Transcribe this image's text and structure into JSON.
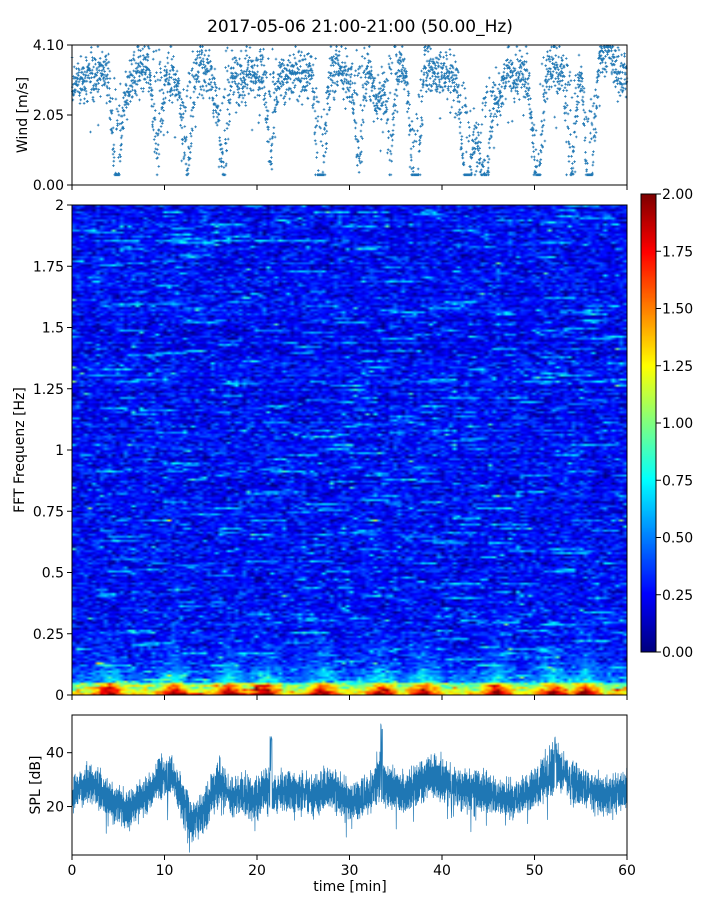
{
  "figure": {
    "title": "2017-05-06 21:00-21:00 (50.00_Hz)",
    "xlabel": "time [min]",
    "x_ticks": [
      "0",
      "10",
      "20",
      "30",
      "40",
      "50",
      "60"
    ],
    "x_tick_values": [
      0,
      10,
      20,
      30,
      40,
      50,
      60
    ],
    "xlim": [
      0,
      60
    ]
  },
  "chart_data": [
    {
      "type": "scatter",
      "panel": "wind",
      "ylabel": "Wind [m/s]",
      "ylim": [
        0,
        4.1
      ],
      "y_ticks": [
        "0.00",
        "2.05",
        "4.10"
      ],
      "y_tick_values": [
        0,
        2.05,
        4.1
      ],
      "color": "#1f77b4",
      "trend_x_min": [
        0,
        1,
        2,
        3,
        4,
        5,
        6,
        7,
        8,
        9,
        10,
        11,
        12,
        13,
        14,
        15,
        16,
        17,
        18,
        19,
        20,
        21,
        22,
        23,
        24,
        25,
        26,
        27,
        28,
        29,
        30,
        31,
        32,
        33,
        34,
        35,
        36,
        37,
        38,
        39,
        40,
        41,
        42,
        43,
        44,
        45,
        46,
        47,
        48,
        49,
        50,
        51,
        52,
        53,
        54,
        55,
        56,
        57,
        58,
        59,
        60
      ],
      "trend_y": [
        3.1,
        2.9,
        3.2,
        3.4,
        3.2,
        2.1,
        2.8,
        3.3,
        3.6,
        3.5,
        3.2,
        3.3,
        2.4,
        3.3,
        3.5,
        3.3,
        2.3,
        3.6,
        3.0,
        3.3,
        3.2,
        3.3,
        3.4,
        3.2,
        3.4,
        3.3,
        3.4,
        1.4,
        3.3,
        3.4,
        3.2,
        3.3,
        3.4,
        2.3,
        3.2,
        3.8,
        3.3,
        1.2,
        3.4,
        3.3,
        3.3,
        3.2,
        3.0,
        1.4,
        1.2,
        2.9,
        2.5,
        3.3,
        3.2,
        3.3,
        1.6,
        3.3,
        3.5,
        3.4,
        3.0,
        3.2,
        1.6,
        3.6,
        3.9,
        3.3,
        3.1
      ],
      "dips_min": [
        4.8,
        9.2,
        12.5,
        16.5,
        21.5,
        26.8,
        31.0,
        34.5,
        37.2,
        42.5,
        44.8,
        50.5,
        54.0,
        56.0
      ],
      "points_per_min": 50
    },
    {
      "type": "heatmap",
      "panel": "spectrogram",
      "ylabel": "FFT Frequenz [Hz]",
      "ylim": [
        0,
        2
      ],
      "y_ticks": [
        "0",
        "0.25",
        "0.5",
        "0.75",
        "1",
        "1.25",
        "1.5",
        "1.75",
        "2"
      ],
      "y_tick_values": [
        0,
        0.25,
        0.5,
        0.75,
        1,
        1.25,
        1.5,
        1.75,
        2
      ],
      "colormap": "jet",
      "clim": [
        0,
        2
      ],
      "colorbar_ticks": [
        "0.00",
        "0.25",
        "0.50",
        "0.75",
        "1.00",
        "1.25",
        "1.50",
        "1.75",
        "2.00"
      ],
      "colorbar_tick_values": [
        0,
        0.25,
        0.5,
        0.75,
        1,
        1.25,
        1.5,
        1.75,
        2
      ],
      "background_level": 0.25,
      "low_freq_energy": [
        {
          "freq_hz": 0.01,
          "level": 1.85
        },
        {
          "freq_hz": 0.05,
          "level": 1.0
        },
        {
          "freq_hz": 0.1,
          "level": 0.65
        },
        {
          "freq_hz": 0.2,
          "level": 0.45
        }
      ],
      "hot_time_min": [
        4,
        11,
        17,
        21,
        27,
        33.5,
        38,
        46,
        52,
        55.5
      ],
      "time_bins": 140,
      "freq_bins": 240
    },
    {
      "type": "area",
      "panel": "spl",
      "ylabel": "SPL [dB]",
      "ylim": [
        2,
        54
      ],
      "y_ticks": [
        "20",
        "40"
      ],
      "y_tick_values": [
        20,
        40
      ],
      "color": "#1f77b4",
      "x_min": [
        0,
        2,
        4,
        6,
        8,
        10,
        11,
        12,
        13,
        14,
        15,
        16,
        17,
        18,
        20,
        21,
        22,
        24,
        26,
        28,
        30,
        32,
        33,
        34,
        36,
        38,
        39,
        40,
        42,
        44,
        46,
        48,
        50,
        51,
        52,
        53,
        54,
        56,
        58,
        60
      ],
      "center_db": [
        23,
        30,
        22,
        19,
        24,
        32,
        31,
        22,
        14,
        17,
        24,
        29,
        24,
        24,
        23,
        26,
        25,
        26,
        24,
        27,
        22,
        24,
        31,
        27,
        25,
        30,
        32,
        30,
        27,
        26,
        24,
        23,
        26,
        30,
        34,
        33,
        29,
        26,
        23,
        26
      ],
      "spread_db": [
        5,
        7,
        6,
        6,
        6,
        7,
        6,
        8,
        7,
        7,
        7,
        8,
        6,
        6,
        7,
        8,
        6,
        7,
        6,
        7,
        6,
        6,
        9,
        7,
        6,
        7,
        8,
        7,
        6,
        7,
        6,
        6,
        7,
        7,
        8,
        7,
        7,
        6,
        6,
        7
      ],
      "spikes": [
        {
          "t_min": 21.5,
          "db": 47
        },
        {
          "t_min": 33.5,
          "db": 51
        },
        {
          "t_min": 52.3,
          "db": 46
        },
        {
          "t_min": 60,
          "db": 38
        }
      ]
    }
  ]
}
